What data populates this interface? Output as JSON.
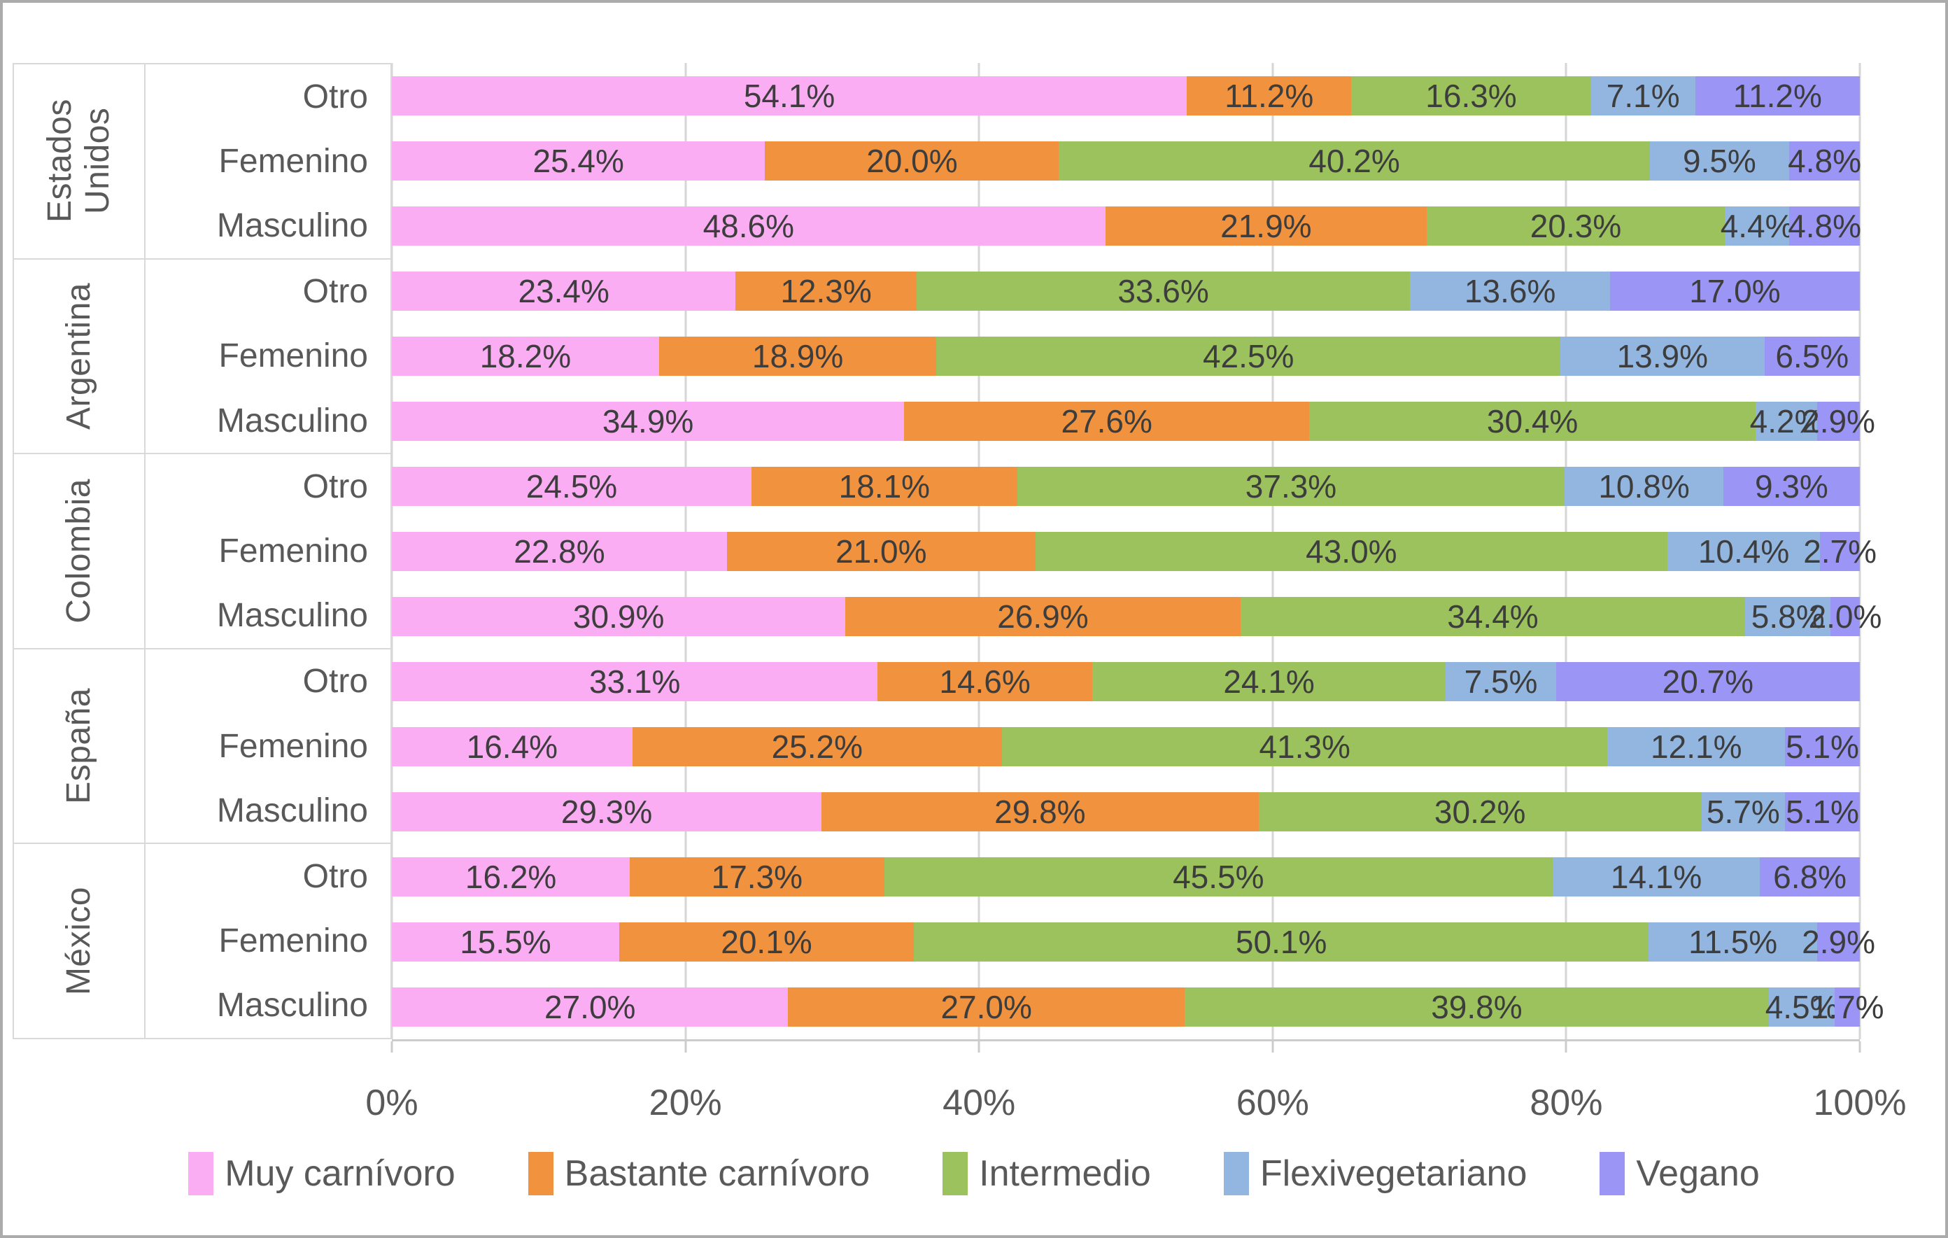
{
  "chart_data": {
    "type": "bar",
    "stacked": true,
    "orientation": "horizontal",
    "value_suffix": "%",
    "value_decimals": 1,
    "grid": true,
    "legend_position": "bottom",
    "x_axis": {
      "min": 0,
      "max": 100,
      "ticks": [
        "0%",
        "20%",
        "40%",
        "60%",
        "80%",
        "100%"
      ]
    },
    "series": [
      {
        "name": "Muy carnívoro",
        "color": "#faadf3"
      },
      {
        "name": "Bastante carnívoro",
        "color": "#f0923e"
      },
      {
        "name": "Intermedio",
        "color": "#9cc25d"
      },
      {
        "name": "Flexivegetariano",
        "color": "#93b6e0"
      },
      {
        "name": "Vegano",
        "color": "#9b96f5"
      }
    ],
    "groups": [
      {
        "country": "Estados Unidos",
        "rows": [
          {
            "label": "Otro",
            "values": [
              54.1,
              11.2,
              16.3,
              7.1,
              11.2
            ]
          },
          {
            "label": "Femenino",
            "values": [
              25.4,
              20.0,
              40.2,
              9.5,
              4.8
            ]
          },
          {
            "label": "Masculino",
            "values": [
              48.6,
              21.9,
              20.3,
              4.4,
              4.8
            ]
          }
        ]
      },
      {
        "country": "Argentina",
        "rows": [
          {
            "label": "Otro",
            "values": [
              23.4,
              12.3,
              33.6,
              13.6,
              17.0
            ]
          },
          {
            "label": "Femenino",
            "values": [
              18.2,
              18.9,
              42.5,
              13.9,
              6.5
            ]
          },
          {
            "label": "Masculino",
            "values": [
              34.9,
              27.6,
              30.4,
              4.2,
              2.9
            ]
          }
        ]
      },
      {
        "country": "Colombia",
        "rows": [
          {
            "label": "Otro",
            "values": [
              24.5,
              18.1,
              37.3,
              10.8,
              9.3
            ]
          },
          {
            "label": "Femenino",
            "values": [
              22.8,
              21.0,
              43.0,
              10.4,
              2.7
            ]
          },
          {
            "label": "Masculino",
            "values": [
              30.9,
              26.9,
              34.4,
              5.8,
              2.0
            ]
          }
        ]
      },
      {
        "country": "España",
        "rows": [
          {
            "label": "Otro",
            "values": [
              33.1,
              14.6,
              24.1,
              7.5,
              20.7
            ]
          },
          {
            "label": "Femenino",
            "values": [
              16.4,
              25.2,
              41.3,
              12.1,
              5.1
            ]
          },
          {
            "label": "Masculino",
            "values": [
              29.3,
              29.8,
              30.2,
              5.7,
              5.1
            ]
          }
        ]
      },
      {
        "country": "México",
        "rows": [
          {
            "label": "Otro",
            "values": [
              16.2,
              17.3,
              45.5,
              14.1,
              6.8
            ]
          },
          {
            "label": "Femenino",
            "values": [
              15.5,
              20.1,
              50.1,
              11.5,
              2.9
            ]
          },
          {
            "label": "Masculino",
            "values": [
              27.0,
              27.0,
              39.8,
              4.5,
              1.7
            ]
          }
        ]
      }
    ]
  }
}
